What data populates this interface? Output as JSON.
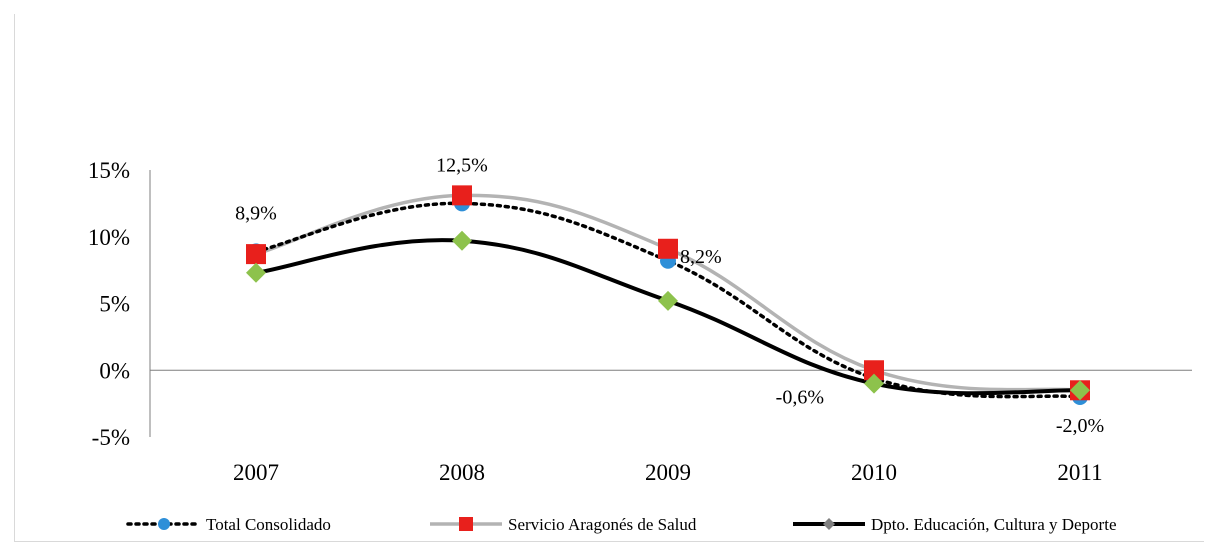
{
  "chart_data": {
    "type": "line",
    "title": "",
    "xlabel": "",
    "ylabel": "",
    "categories": [
      "2007",
      "2008",
      "2009",
      "2010",
      "2011"
    ],
    "ylim": [
      -0.05,
      0.15
    ],
    "yticks": [
      {
        "value": -0.05,
        "label": "-5%"
      },
      {
        "value": 0.0,
        "label": "0%"
      },
      {
        "value": 0.05,
        "label": "5%"
      },
      {
        "value": 0.1,
        "label": "10%"
      },
      {
        "value": 0.15,
        "label": "15%"
      }
    ],
    "grid": false,
    "legend_position": "bottom",
    "series": [
      {
        "name": "Total Consolidado",
        "values": [
          0.089,
          0.125,
          0.082,
          -0.006,
          -0.02
        ],
        "line_color": "#000000",
        "line_style": "dotted",
        "marker": "circle",
        "marker_color": "#2e8fd8"
      },
      {
        "name": "Servicio Aragonés de Salud",
        "values": [
          0.087,
          0.131,
          0.091,
          0.0,
          -0.015
        ],
        "line_color": "#b3b3b3",
        "line_style": "solid",
        "marker": "square",
        "marker_color": "#e8201c"
      },
      {
        "name": "Dpto. Educación, Cultura y Deporte",
        "values": [
          0.073,
          0.097,
          0.052,
          -0.01,
          -0.015
        ],
        "line_color": "#000000",
        "line_style": "solid-thick",
        "marker": "diamond",
        "marker_color": "#8dc24c"
      }
    ],
    "data_labels": [
      {
        "series": 0,
        "index": 0,
        "text": "8,9%",
        "position": "above"
      },
      {
        "series": 0,
        "index": 1,
        "text": "12,5%",
        "position": "above"
      },
      {
        "series": 0,
        "index": 2,
        "text": "8,2%",
        "position": "right"
      },
      {
        "series": 0,
        "index": 3,
        "text": "-0,6%",
        "position": "left"
      },
      {
        "series": 0,
        "index": 4,
        "text": "-2,0%",
        "position": "below"
      }
    ]
  }
}
